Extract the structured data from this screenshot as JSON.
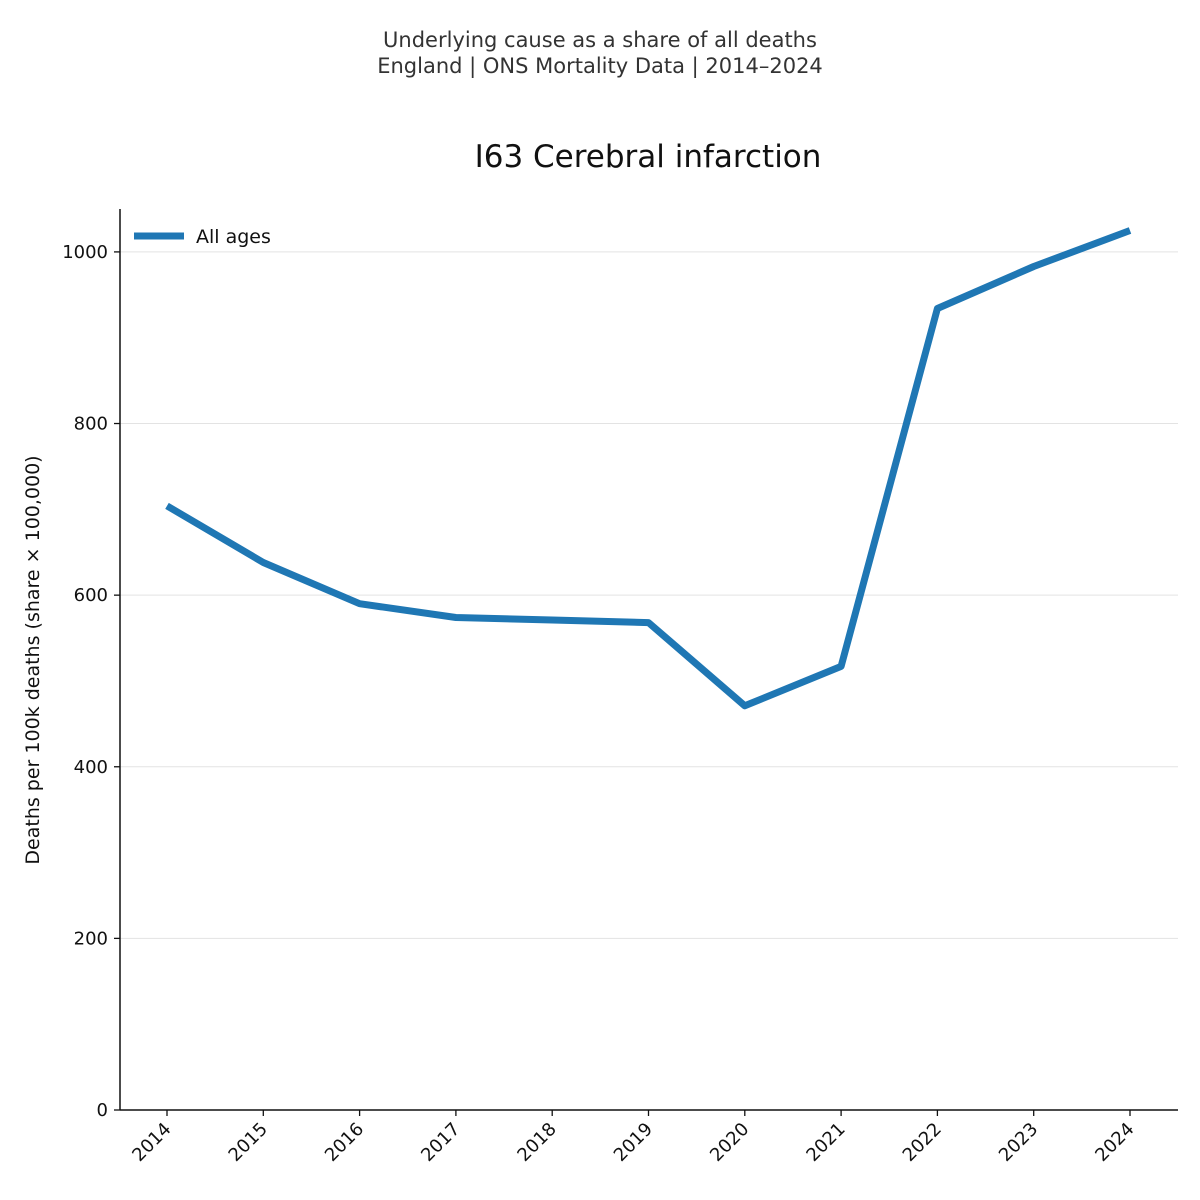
{
  "chart_data": {
    "type": "line",
    "suptitle": [
      "Underlying cause as a share of all deaths",
      "England | ONS Mortality Data | 2014–2024"
    ],
    "title": "I63 Cerebral infarction",
    "xlabel": "",
    "ylabel": "Deaths per 100k deaths (share × 100,000)",
    "categories": [
      "2014",
      "2015",
      "2016",
      "2017",
      "2018",
      "2019",
      "2020",
      "2021",
      "2022",
      "2023",
      "2024"
    ],
    "ylim": [
      0,
      1050
    ],
    "yticks": [
      0,
      200,
      400,
      600,
      800,
      1000
    ],
    "grid": "horizontal",
    "legend_position": "top-left",
    "series": [
      {
        "name": "All ages",
        "color": "#1f77b4",
        "values": [
          704,
          638,
          590,
          574,
          571,
          568,
          471,
          517,
          934,
          983,
          1025
        ]
      }
    ]
  }
}
